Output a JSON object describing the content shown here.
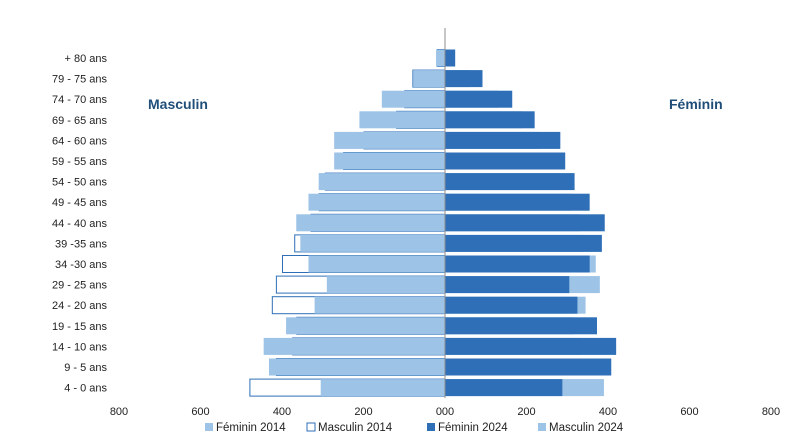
{
  "chart_data": {
    "type": "bar",
    "orientation": "horizontal-population-pyramid",
    "side_labels": {
      "left": "Masculin",
      "right": "Féminin"
    },
    "categories": [
      "+ 80 ans",
      "79 - 75 ans",
      "74 - 70 ans",
      "69 - 65 ans",
      "64 - 60 ans",
      "59 - 55 ans",
      "54 - 50 ans",
      "49 - 45 ans",
      "44 - 40 ans",
      "39 -35 ans",
      "34 -30 ans",
      "29 - 25 ans",
      "24 - 20 ans",
      "19 - 15 ans",
      "14 - 10 ans",
      "9 - 5 ans",
      "4 - 0 ans"
    ],
    "x_ticks": [
      "800",
      "600",
      "400",
      "200",
      "000",
      "200",
      "400",
      "600",
      "800"
    ],
    "xlim": [
      -800,
      800
    ],
    "series": [
      {
        "name": "Féminin 2014",
        "side": "right",
        "color": "#9dc3e6",
        "values": [
          18,
          62,
          130,
          190,
          230,
          240,
          280,
          310,
          330,
          340,
          370,
          380,
          345,
          315,
          335,
          345,
          390
        ]
      },
      {
        "name": "Masculin 2014",
        "side": "left",
        "color": "#ffffff",
        "stroke": "#2e6fb7",
        "values": [
          20,
          80,
          100,
          120,
          200,
          250,
          295,
          310,
          330,
          370,
          400,
          415,
          425,
          365,
          375,
          415,
          480
        ]
      },
      {
        "name": "Féminin 2024",
        "side": "right",
        "color": "#2e6fb7",
        "values": [
          25,
          92,
          165,
          220,
          283,
          295,
          318,
          355,
          392,
          385,
          355,
          305,
          325,
          373,
          420,
          408,
          288
        ]
      },
      {
        "name": "Masculin 2024",
        "side": "left",
        "color": "#9dc3e6",
        "values": [
          22,
          78,
          155,
          210,
          272,
          272,
          310,
          335,
          365,
          355,
          335,
          290,
          320,
          390,
          445,
          432,
          305
        ]
      }
    ],
    "legend": [
      "Féminin 2014",
      "Masculin 2014",
      "Féminin 2024",
      "Masculin 2024"
    ],
    "legend_position": "bottom"
  }
}
